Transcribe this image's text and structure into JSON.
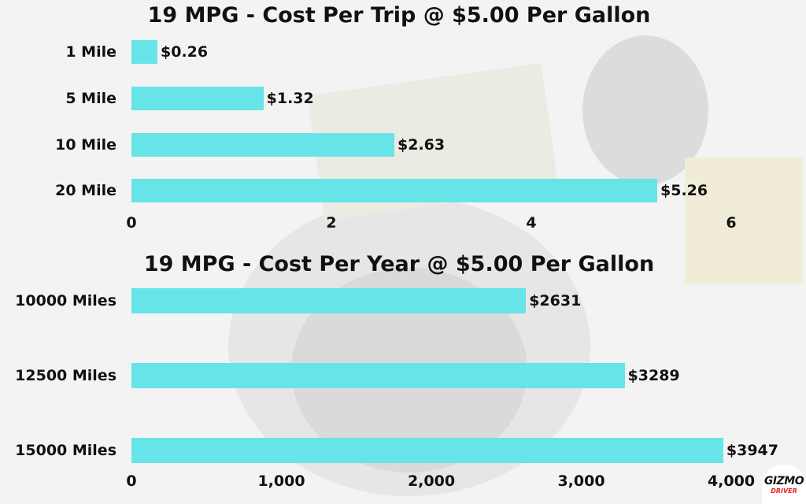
{
  "chart_data": [
    {
      "type": "bar",
      "orientation": "horizontal",
      "title": "19 MPG - Cost Per Trip @ $5.00 Per Gallon",
      "categories": [
        "1 Mile",
        "5 Mile",
        "10 Mile",
        "20 Mile"
      ],
      "values": [
        0.26,
        1.32,
        2.63,
        5.26
      ],
      "data_labels": [
        "$0.26",
        "$1.32",
        "$2.63",
        "$5.26"
      ],
      "xticks": [
        0,
        2,
        4,
        6
      ],
      "xtick_labels": [
        "0",
        "2",
        "4",
        "6"
      ],
      "xlim": [
        0,
        6
      ],
      "color": "#67e4e7"
    },
    {
      "type": "bar",
      "orientation": "horizontal",
      "title": "19 MPG - Cost Per Year @ $5.00 Per Gallon",
      "categories": [
        "10000 Miles",
        "12500 Miles",
        "15000 Miles"
      ],
      "values": [
        2631,
        3289,
        3947
      ],
      "data_labels": [
        "$2631",
        "$3289",
        "$3947"
      ],
      "xticks": [
        0,
        1000,
        2000,
        3000,
        4000
      ],
      "xtick_labels": [
        "0",
        "1,000",
        "2,000",
        "3,000",
        "4,000"
      ],
      "xlim": [
        0,
        4000
      ],
      "color": "#67e4e7"
    }
  ],
  "logo": {
    "name": "GIZMO",
    "sub": "DRIVER"
  }
}
